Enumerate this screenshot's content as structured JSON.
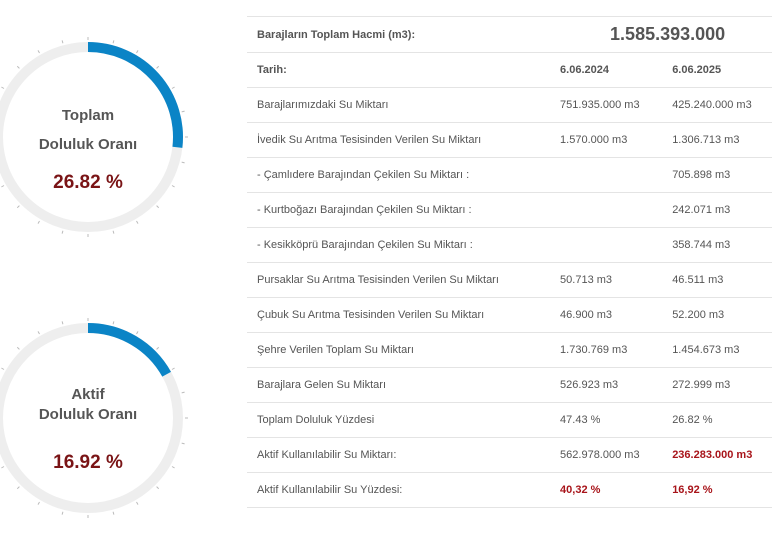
{
  "gauges": {
    "total": {
      "line1": "Toplam",
      "line2": "Doluluk Oranı",
      "value": "26.82 %",
      "percent": 26.82
    },
    "active": {
      "line1": "Aktif",
      "line2": "Doluluk Oranı",
      "value": "16.92 %",
      "percent": 16.92
    }
  },
  "colors": {
    "gauge_fill": "#0b84c6",
    "gauge_track": "#eeeeee",
    "value_red": "#7a1416",
    "highlight_red": "#a8141a"
  },
  "table": {
    "total_volume_label": "Barajların Toplam Hacmi (m3):",
    "total_volume_value": "1.585.393.000",
    "date_label": "Tarih:",
    "date1": "6.06.2024",
    "date2": "6.06.2025",
    "rows": [
      {
        "label": "Barajlarımızdaki Su Miktarı",
        "v1": "751.935.000 m3",
        "v2": "425.240.000 m3"
      },
      {
        "label": "İvedik Su Arıtma Tesisinden Verilen Su Miktarı",
        "v1": "1.570.000 m3",
        "v2": "1.306.713 m3"
      },
      {
        "label": "- Çamlıdere Barajından Çekilen Su Miktarı :",
        "v1": "",
        "v2": "705.898 m3"
      },
      {
        "label": "- Kurtboğazı Barajından Çekilen Su Miktarı :",
        "v1": "",
        "v2": "242.071 m3"
      },
      {
        "label": "- Kesikköprü Barajından Çekilen Su Miktarı :",
        "v1": "",
        "v2": "358.744 m3"
      },
      {
        "label": "Pursaklar Su Arıtma Tesisinden Verilen Su Miktarı",
        "v1": "50.713 m3",
        "v2": "46.511 m3"
      },
      {
        "label": "Çubuk Su Arıtma Tesisinden Verilen Su Miktarı",
        "v1": "46.900 m3",
        "v2": "52.200 m3"
      },
      {
        "label": "Şehre Verilen Toplam Su Miktarı",
        "v1": "1.730.769 m3",
        "v2": "1.454.673 m3"
      },
      {
        "label": "Barajlara Gelen Su Miktarı",
        "v1": "526.923 m3",
        "v2": "272.999 m3"
      },
      {
        "label": "Toplam Doluluk Yüzdesi",
        "v1": "47.43 %",
        "v2": "26.82 %"
      },
      {
        "label": "Aktif Kullanılabilir Su Miktarı:",
        "v1": "562.978.000 m3",
        "v2": "236.283.000 m3"
      },
      {
        "label": "Aktif Kullanılabilir Su Yüzdesi:",
        "v1": "40,32 %",
        "v2": "16,92 %"
      }
    ]
  }
}
